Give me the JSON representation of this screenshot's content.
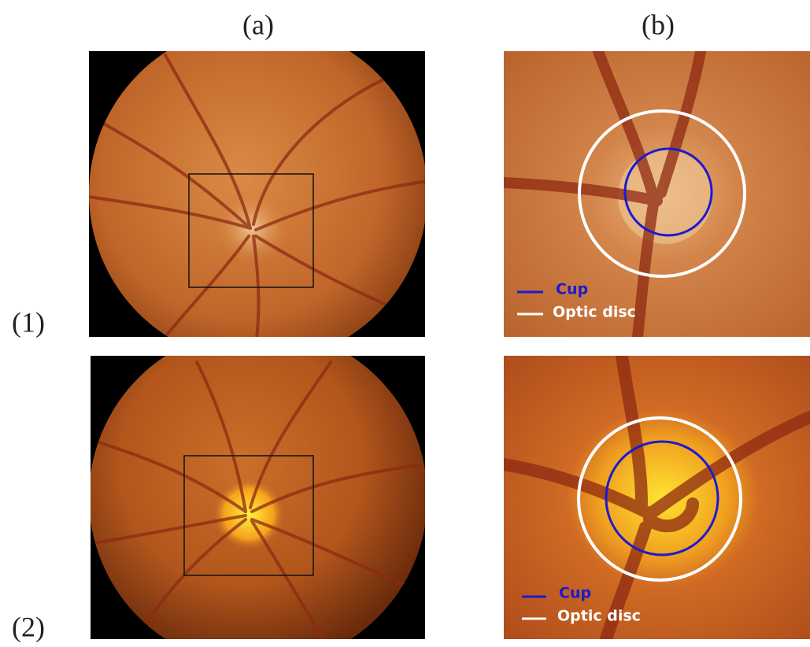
{
  "column_labels": [
    "(a)",
    "(b)"
  ],
  "row_labels": [
    "(1)",
    "(2)"
  ],
  "legends": [
    {
      "cup": "Cup",
      "optic_disc": "Optic disc"
    },
    {
      "cup": "Cup",
      "optic_disc": "Optic disc"
    }
  ]
}
